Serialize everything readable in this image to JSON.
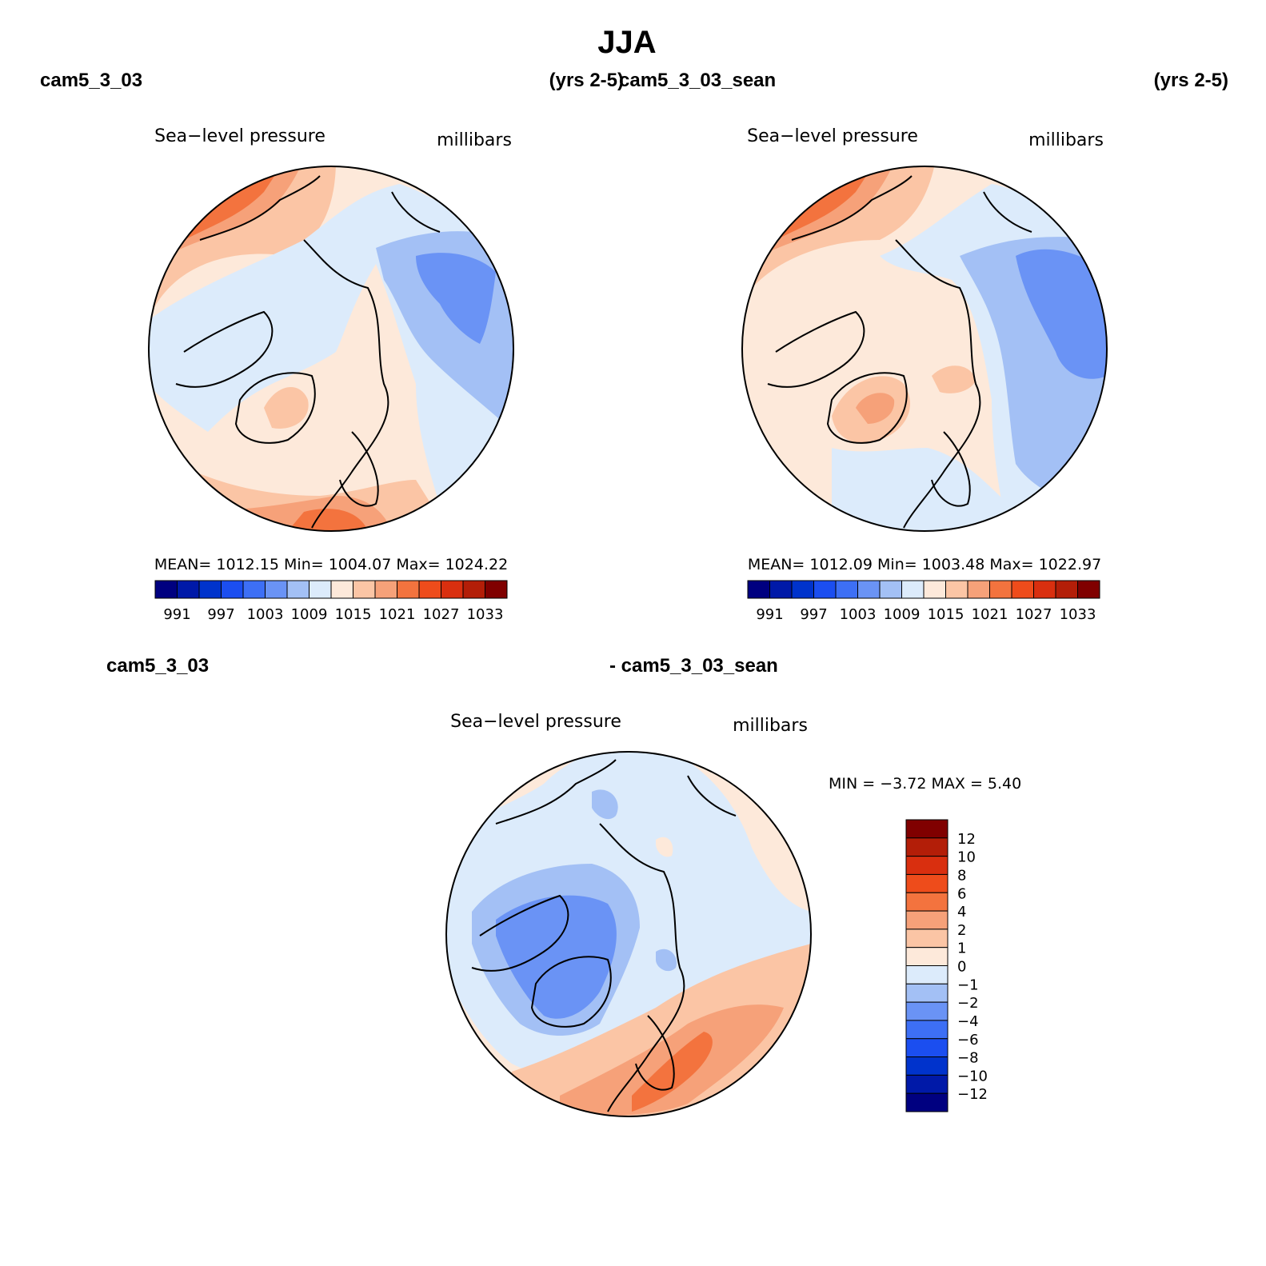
{
  "figure": {
    "title": "JJA",
    "panels": [
      {
        "case": "cam5_3_03",
        "years": "(yrs 2-5)",
        "variable": "Sea−level pressure",
        "units": "millibars",
        "stats": {
          "mean_label": "MEAN=",
          "mean": "1012.15",
          "min_label": "Min=",
          "min": "1004.07",
          "max_label": "Max=",
          "max": "1024.22"
        }
      },
      {
        "case": "cam5_3_03_sean",
        "years": "(yrs 2-5)",
        "variable": "Sea−level pressure",
        "units": "millibars",
        "stats": {
          "mean_label": "MEAN=",
          "mean": "1012.09",
          "min_label": "Min=",
          "min": "1003.48",
          "max_label": "Max=",
          "max": "1022.97"
        }
      }
    ],
    "diff_panel": {
      "case_a": "cam5_3_03",
      "case_b": "- cam5_3_03_sean",
      "variable": "Sea−level pressure",
      "units": "millibars",
      "stats": {
        "min_label": "MIN =",
        "min": "−3.72",
        "max_label": "MAX =",
        "max": "5.40"
      }
    },
    "colorbar_abs": {
      "colors": [
        "#000080",
        "#0019a8",
        "#0033cc",
        "#1b4ef0",
        "#3d6ff5",
        "#6a93f5",
        "#a3c0f5",
        "#dcebfb",
        "#fde9da",
        "#fbc5a5",
        "#f6a179",
        "#f3733e",
        "#ee4c1b",
        "#d92f0f",
        "#b31e08",
        "#800000"
      ],
      "tick_labels": [
        "991",
        "997",
        "1003",
        "1009",
        "1015",
        "1021",
        "1027",
        "1033"
      ]
    },
    "colorbar_diff": {
      "colors": [
        "#000080",
        "#0019a8",
        "#0033cc",
        "#1b4ef0",
        "#3d6ff5",
        "#6a93f5",
        "#a3c0f5",
        "#dcebfb",
        "#fde9da",
        "#fbc5a5",
        "#f6a179",
        "#f3733e",
        "#ee4c1b",
        "#d92f0f",
        "#b31e08",
        "#800000"
      ],
      "tick_labels": [
        "12",
        "10",
        "8",
        "6",
        "4",
        "2",
        "1",
        "0",
        "−1",
        "−2",
        "−4",
        "−6",
        "−8",
        "−10",
        "−12"
      ]
    }
  }
}
